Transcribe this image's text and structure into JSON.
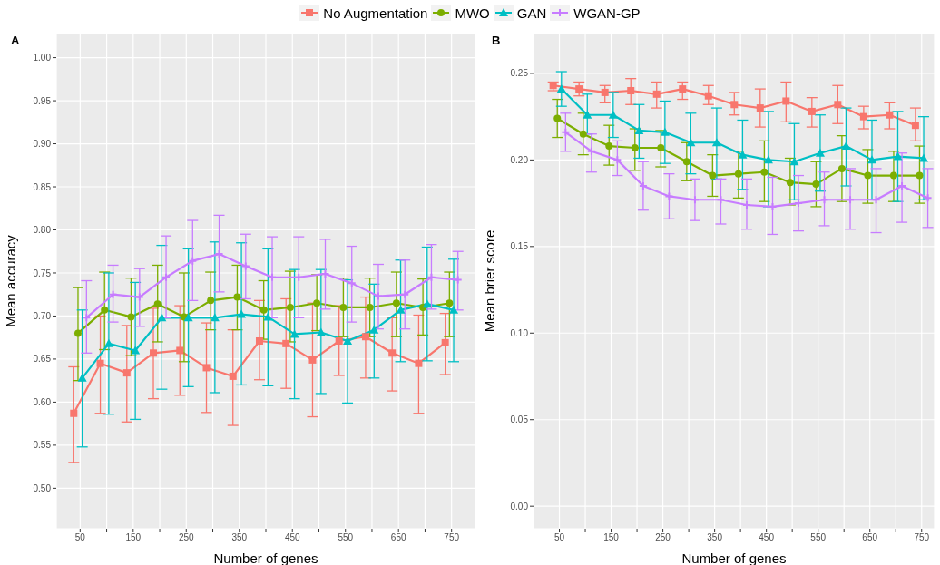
{
  "chart_data": [
    {
      "type": "line",
      "title": "A",
      "xlabel": "Number of genes",
      "ylabel": "Mean accuracy",
      "xlim": [
        5,
        795
      ],
      "ylim": [
        0.453,
        1.028
      ],
      "xticks": [
        50,
        {
          "value": 100,
          "label": null
        },
        150,
        {
          "value": 200,
          "label": null
        },
        250,
        {
          "value": 300,
          "label": null
        },
        350,
        {
          "value": 400,
          "label": null
        },
        450,
        {
          "value": 500,
          "label": null
        },
        550,
        {
          "value": 600,
          "label": null
        },
        650,
        {
          "value": 700,
          "label": null
        },
        750
      ],
      "yticks": [
        {
          "value": 0.5,
          "label": "0.50"
        },
        {
          "value": 0.55,
          "label": "0.55"
        },
        {
          "value": 0.6,
          "label": "0.60"
        },
        {
          "value": 0.65,
          "label": "0.65"
        },
        {
          "value": 0.7,
          "label": "0.70"
        },
        {
          "value": 0.75,
          "label": "0.75"
        },
        {
          "value": 0.8,
          "label": "0.80"
        },
        {
          "value": 0.85,
          "label": "0.85"
        },
        {
          "value": 0.9,
          "label": "0.90"
        },
        {
          "value": 0.95,
          "label": "0.95"
        },
        {
          "value": 1.0,
          "label": "1.00"
        }
      ],
      "grid": true,
      "legend": "top",
      "line_style": "solid",
      "series": [
        {
          "name": "No Augmentation",
          "color": "#f8766d",
          "marker": "square",
          "x": [
            38,
            88,
            138,
            188,
            238,
            288,
            338,
            388,
            438,
            488,
            538,
            588,
            638,
            688,
            738
          ],
          "values": [
            0.587,
            0.645,
            0.634,
            0.657,
            0.66,
            0.64,
            0.63,
            0.671,
            0.668,
            0.649,
            0.671,
            0.676,
            0.657,
            0.645,
            0.669
          ],
          "errors": [
            [
              0.53,
              0.641
            ],
            [
              0.587,
              0.7
            ],
            [
              0.577,
              0.689
            ],
            [
              0.604,
              0.709
            ],
            [
              0.608,
              0.712
            ],
            [
              0.588,
              0.692
            ],
            [
              0.573,
              0.684
            ],
            [
              0.626,
              0.718
            ],
            [
              0.616,
              0.72
            ],
            [
              0.583,
              0.715
            ],
            [
              0.631,
              0.712
            ],
            [
              0.628,
              0.722
            ],
            [
              0.613,
              0.698
            ],
            [
              0.587,
              0.701
            ],
            [
              0.632,
              0.703
            ]
          ]
        },
        {
          "name": "MWO",
          "color": "#7cae00",
          "marker": "circle",
          "x": [
            46,
            96,
            146,
            196,
            246,
            296,
            346,
            396,
            446,
            496,
            546,
            596,
            646,
            696,
            746
          ],
          "values": [
            0.68,
            0.707,
            0.699,
            0.714,
            0.699,
            0.718,
            0.722,
            0.707,
            0.71,
            0.715,
            0.71,
            0.71,
            0.715,
            0.71,
            0.715
          ],
          "errors": [
            [
              0.625,
              0.733
            ],
            [
              0.661,
              0.751
            ],
            [
              0.654,
              0.744
            ],
            [
              0.67,
              0.759
            ],
            [
              0.647,
              0.75
            ],
            [
              0.684,
              0.751
            ],
            [
              0.684,
              0.759
            ],
            [
              0.673,
              0.741
            ],
            [
              0.67,
              0.752
            ],
            [
              0.683,
              0.748
            ],
            [
              0.676,
              0.744
            ],
            [
              0.676,
              0.744
            ],
            [
              0.676,
              0.751
            ],
            [
              0.678,
              0.743
            ],
            [
              0.676,
              0.751
            ]
          ]
        },
        {
          "name": "GAN",
          "color": "#00bfc4",
          "marker": "triangle",
          "x": [
            54,
            104,
            154,
            204,
            254,
            304,
            354,
            404,
            454,
            504,
            554,
            604,
            654,
            704,
            754
          ],
          "values": [
            0.628,
            0.668,
            0.66,
            0.698,
            0.698,
            0.698,
            0.702,
            0.699,
            0.679,
            0.681,
            0.671,
            0.684,
            0.707,
            0.714,
            0.707
          ],
          "errors": [
            [
              0.548,
              0.707
            ],
            [
              0.586,
              0.75
            ],
            [
              0.58,
              0.739
            ],
            [
              0.615,
              0.782
            ],
            [
              0.618,
              0.778
            ],
            [
              0.611,
              0.786
            ],
            [
              0.62,
              0.785
            ],
            [
              0.619,
              0.778
            ],
            [
              0.604,
              0.754
            ],
            [
              0.61,
              0.754
            ],
            [
              0.599,
              0.742
            ],
            [
              0.628,
              0.737
            ],
            [
              0.647,
              0.765
            ],
            [
              0.648,
              0.78
            ],
            [
              0.647,
              0.766
            ]
          ]
        },
        {
          "name": "WGAN-GP",
          "color": "#c77cff",
          "marker": "cross",
          "x": [
            62,
            112,
            162,
            212,
            262,
            312,
            362,
            412,
            462,
            512,
            562,
            612,
            662,
            712,
            762
          ],
          "values": [
            0.698,
            0.725,
            0.722,
            0.745,
            0.764,
            0.772,
            0.758,
            0.745,
            0.745,
            0.749,
            0.738,
            0.723,
            0.725,
            0.745,
            0.742
          ],
          "errors": [
            [
              0.657,
              0.741
            ],
            [
              0.693,
              0.759
            ],
            [
              0.688,
              0.755
            ],
            [
              0.698,
              0.793
            ],
            [
              0.718,
              0.811
            ],
            [
              0.728,
              0.817
            ],
            [
              0.72,
              0.795
            ],
            [
              0.698,
              0.792
            ],
            [
              0.698,
              0.792
            ],
            [
              0.708,
              0.789
            ],
            [
              0.693,
              0.781
            ],
            [
              0.685,
              0.76
            ],
            [
              0.685,
              0.765
            ],
            [
              0.708,
              0.783
            ],
            [
              0.707,
              0.775
            ]
          ]
        }
      ]
    },
    {
      "type": "line",
      "title": "B",
      "xlabel": "Number of genes",
      "ylabel": "Mean brier score",
      "xlim": [
        0,
        775
      ],
      "ylim": [
        -0.013,
        0.273
      ],
      "xticks": [
        50,
        {
          "value": 100,
          "label": null
        },
        150,
        {
          "value": 200,
          "label": null
        },
        250,
        {
          "value": 300,
          "label": null
        },
        350,
        {
          "value": 400,
          "label": null
        },
        450,
        {
          "value": 500,
          "label": null
        },
        550,
        {
          "value": 600,
          "label": null
        },
        650,
        {
          "value": 700,
          "label": null
        },
        750
      ],
      "yticks": [
        {
          "value": 0,
          "label": "0.00"
        },
        {
          "value": 0.05,
          "label": "0.05"
        },
        {
          "value": 0.1,
          "label": "0.10"
        },
        {
          "value": 0.15,
          "label": "0.15"
        },
        {
          "value": 0.2,
          "label": "0.20"
        },
        {
          "value": 0.25,
          "label": "0.25"
        }
      ],
      "grid": true,
      "line_style": "solid",
      "series": [
        {
          "color": "#f8766d",
          "marker": "square",
          "x": [
            38,
            88,
            138,
            188,
            238,
            288,
            338,
            388,
            438,
            488,
            538,
            588,
            638,
            688,
            738
          ],
          "values": [
            0.243,
            0.241,
            0.239,
            0.24,
            0.238,
            0.241,
            0.237,
            0.232,
            0.23,
            0.234,
            0.228,
            0.232,
            0.225,
            0.226,
            0.22
          ],
          "errors": [
            [
              0.24,
              0.245
            ],
            [
              0.237,
              0.245
            ],
            [
              0.233,
              0.243
            ],
            [
              0.232,
              0.247
            ],
            [
              0.23,
              0.245
            ],
            [
              0.235,
              0.245
            ],
            [
              0.232,
              0.243
            ],
            [
              0.226,
              0.239
            ],
            [
              0.219,
              0.241
            ],
            [
              0.222,
              0.245
            ],
            [
              0.219,
              0.236
            ],
            [
              0.221,
              0.243
            ],
            [
              0.218,
              0.231
            ],
            [
              0.218,
              0.233
            ],
            [
              0.211,
              0.23
            ]
          ]
        },
        {
          "color": "#7cae00",
          "marker": "circle",
          "x": [
            46,
            96,
            146,
            196,
            246,
            296,
            346,
            396,
            446,
            496,
            546,
            596,
            646,
            696,
            746
          ],
          "values": [
            0.224,
            0.215,
            0.208,
            0.207,
            0.207,
            0.199,
            0.191,
            0.192,
            0.193,
            0.187,
            0.186,
            0.195,
            0.191,
            0.191,
            0.191
          ],
          "errors": [
            [
              0.213,
              0.235
            ],
            [
              0.203,
              0.227
            ],
            [
              0.197,
              0.22
            ],
            [
              0.194,
              0.218
            ],
            [
              0.196,
              0.217
            ],
            [
              0.188,
              0.21
            ],
            [
              0.179,
              0.203
            ],
            [
              0.178,
              0.205
            ],
            [
              0.176,
              0.211
            ],
            [
              0.174,
              0.201
            ],
            [
              0.173,
              0.199
            ],
            [
              0.176,
              0.214
            ],
            [
              0.175,
              0.206
            ],
            [
              0.176,
              0.205
            ],
            [
              0.175,
              0.208
            ]
          ]
        },
        {
          "color": "#00bfc4",
          "marker": "triangle",
          "x": [
            54,
            104,
            154,
            204,
            254,
            304,
            354,
            404,
            454,
            504,
            554,
            604,
            654,
            704,
            754
          ],
          "values": [
            0.241,
            0.226,
            0.226,
            0.217,
            0.216,
            0.21,
            0.21,
            0.203,
            0.2,
            0.199,
            0.204,
            0.208,
            0.2,
            0.202,
            0.201
          ],
          "errors": [
            [
              0.231,
              0.251
            ],
            [
              0.215,
              0.238
            ],
            [
              0.213,
              0.239
            ],
            [
              0.201,
              0.232
            ],
            [
              0.198,
              0.234
            ],
            [
              0.192,
              0.227
            ],
            [
              0.189,
              0.23
            ],
            [
              0.183,
              0.223
            ],
            [
              0.173,
              0.228
            ],
            [
              0.177,
              0.221
            ],
            [
              0.182,
              0.226
            ],
            [
              0.185,
              0.23
            ],
            [
              0.177,
              0.223
            ],
            [
              0.176,
              0.228
            ],
            [
              0.177,
              0.225
            ]
          ]
        },
        {
          "color": "#c77cff",
          "marker": "cross",
          "x": [
            62,
            112,
            162,
            212,
            262,
            312,
            362,
            412,
            462,
            512,
            562,
            612,
            662,
            712,
            762
          ],
          "values": [
            0.216,
            0.205,
            0.2,
            0.185,
            0.179,
            0.177,
            0.177,
            0.174,
            0.173,
            0.175,
            0.177,
            0.177,
            0.177,
            0.185,
            0.178
          ],
          "errors": [
            [
              0.205,
              0.227
            ],
            [
              0.193,
              0.215
            ],
            [
              0.191,
              0.211
            ],
            [
              0.171,
              0.199
            ],
            [
              0.166,
              0.192
            ],
            [
              0.165,
              0.189
            ],
            [
              0.163,
              0.189
            ],
            [
              0.16,
              0.189
            ],
            [
              0.157,
              0.19
            ],
            [
              0.159,
              0.191
            ],
            [
              0.162,
              0.193
            ],
            [
              0.16,
              0.195
            ],
            [
              0.158,
              0.195
            ],
            [
              0.164,
              0.204
            ],
            [
              0.161,
              0.195
            ]
          ]
        }
      ]
    }
  ]
}
